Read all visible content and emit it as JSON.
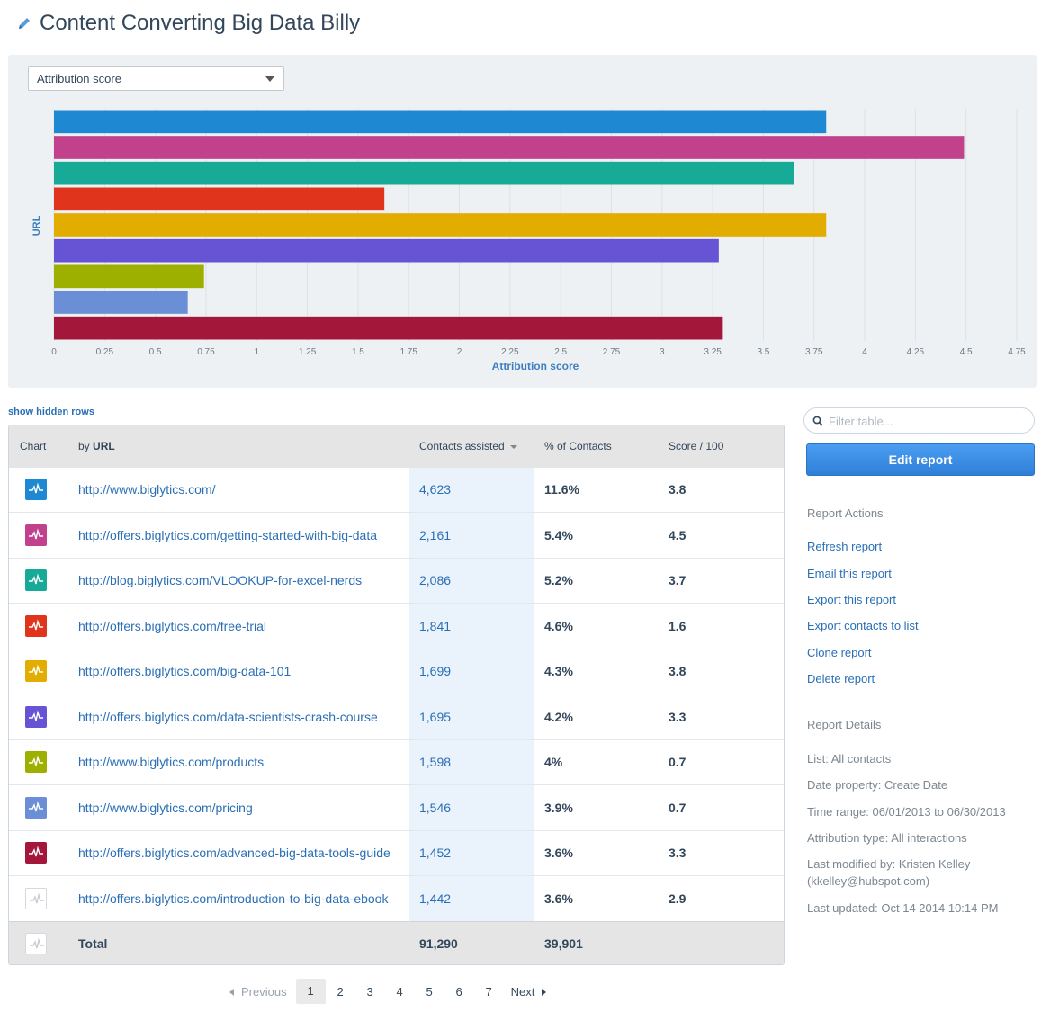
{
  "title": "Content Converting Big Data Billy",
  "metric_select": "Attribution score",
  "chart_data": {
    "type": "bar",
    "orientation": "horizontal",
    "ylabel": "URL",
    "xlabel": "Attribution score",
    "xlim": [
      0,
      4.75
    ],
    "ticks": [
      "0",
      "0.25",
      "0.5",
      "0.75",
      "1",
      "1.25",
      "1.5",
      "1.75",
      "2",
      "2.25",
      "2.5",
      "2.75",
      "3",
      "3.25",
      "3.5",
      "3.75",
      "4",
      "4.25",
      "4.5",
      "4.75"
    ],
    "values": [
      3.81,
      4.49,
      3.65,
      1.63,
      3.81,
      3.28,
      0.74,
      0.66,
      3.3
    ],
    "colors": [
      "#1f88d2",
      "#c2418c",
      "#17aa96",
      "#e0351c",
      "#e2ad00",
      "#6754d4",
      "#9db000",
      "#6a8fd6",
      "#a3173a"
    ],
    "grid": true
  },
  "show_hidden_rows": "show hidden rows",
  "table": {
    "headers": {
      "chart": "Chart",
      "by": "by",
      "url": "URL",
      "contacts": "Contacts assisted",
      "pct": "% of Contacts",
      "score": "Score / 100"
    },
    "rows": [
      {
        "url": "http://www.biglytics.com/",
        "contacts": "4,623",
        "pct": "11.6%",
        "score": "3.8",
        "color": "#1f88d2"
      },
      {
        "url": "http://offers.biglytics.com/getting-started-with-big-data",
        "contacts": "2,161",
        "pct": "5.4%",
        "score": "4.5",
        "color": "#c2418c"
      },
      {
        "url": "http://blog.biglytics.com/VLOOKUP-for-excel-nerds",
        "contacts": "2,086",
        "pct": "5.2%",
        "score": "3.7",
        "color": "#17aa96"
      },
      {
        "url": "http://offers.biglytics.com/free-trial",
        "contacts": "1,841",
        "pct": "4.6%",
        "score": "1.6",
        "color": "#e0351c"
      },
      {
        "url": "http://offers.biglytics.com/big-data-101",
        "contacts": "1,699",
        "pct": "4.3%",
        "score": "3.8",
        "color": "#e2ad00"
      },
      {
        "url": "http://offers.biglytics.com/data-scientists-crash-course",
        "contacts": "1,695",
        "pct": "4.2%",
        "score": "3.3",
        "color": "#6754d4"
      },
      {
        "url": "http://www.biglytics.com/products",
        "contacts": "1,598",
        "pct": "4%",
        "score": "0.7",
        "color": "#9db000"
      },
      {
        "url": "http://www.biglytics.com/pricing",
        "contacts": "1,546",
        "pct": "3.9%",
        "score": "0.7",
        "color": "#6a8fd6"
      },
      {
        "url": "http://offers.biglytics.com/advanced-big-data-tools-guide",
        "contacts": "1,452",
        "pct": "3.6%",
        "score": "3.3",
        "color": "#a3173a"
      },
      {
        "url": "http://offers.biglytics.com/introduction-to-big-data-ebook",
        "contacts": "1,442",
        "pct": "3.6%",
        "score": "2.9",
        "color": ""
      }
    ],
    "total": {
      "label": "Total",
      "contacts": "91,290",
      "pct": "39,901"
    }
  },
  "pagination": {
    "prev": "Previous",
    "pages": [
      "1",
      "2",
      "3",
      "4",
      "5",
      "6",
      "7"
    ],
    "current": "1",
    "next": "Next"
  },
  "sidebar": {
    "filter_placeholder": "Filter table...",
    "edit_button": "Edit report",
    "actions_title": "Report Actions",
    "actions": [
      "Refresh report",
      "Email this report",
      "Export this report",
      "Export contacts to list",
      "Clone report",
      "Delete report"
    ],
    "details_title": "Report Details",
    "details": {
      "list": "List: All contacts",
      "date_property": "Date property: Create Date",
      "time_range": "Time range: 06/01/2013 to 06/30/2013",
      "attribution_type": "Attribution type: All interactions",
      "last_modified": "Last modified by: Kristen Kelley",
      "last_modified_email": "(kkelley@hubspot.com)",
      "last_updated": "Last updated: Oct 14 2014 10:14 PM"
    }
  }
}
